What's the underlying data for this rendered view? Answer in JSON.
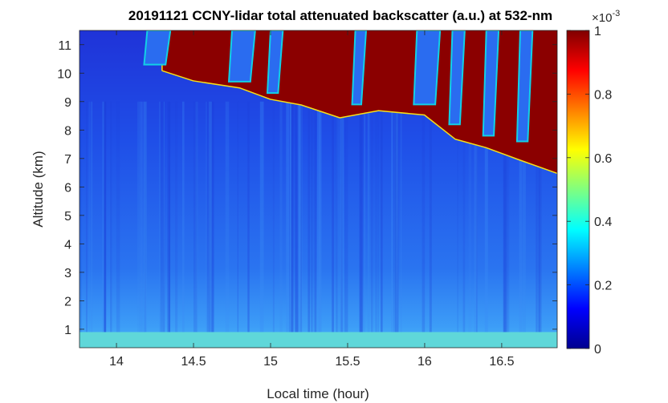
{
  "chart_data": {
    "type": "heatmap",
    "title": "20191121 CCNY-lidar total attenuated backscatter (a.u.) at 532-nm",
    "xlabel": "Local time (hour)",
    "ylabel": "Altitude (km)",
    "xlim": [
      13.76,
      16.86
    ],
    "ylim": [
      0.35,
      11.5
    ],
    "xticks": [
      14,
      14.5,
      15,
      15.5,
      16,
      16.5
    ],
    "xtick_labels": [
      "14",
      "14.5",
      "15",
      "15.5",
      "16",
      "16.5"
    ],
    "yticks": [
      1,
      2,
      3,
      4,
      5,
      6,
      7,
      8,
      9,
      10,
      11
    ],
    "ytick_labels": [
      "1",
      "2",
      "3",
      "4",
      "5",
      "6",
      "7",
      "8",
      "9",
      "10",
      "11"
    ],
    "colorbar": {
      "colormap": "jet",
      "clim": [
        0,
        1
      ],
      "ticks": [
        0,
        0.2,
        0.4,
        0.6,
        0.8,
        1
      ],
      "tick_labels": [
        "0",
        "0.2",
        "0.4",
        "0.6",
        "0.8",
        "1"
      ],
      "multiplier_base": "×10",
      "multiplier_exp": "-3"
    },
    "cloud_base_km": {
      "time": [
        14.3,
        14.5,
        14.8,
        15.0,
        15.2,
        15.45,
        15.7,
        16.0,
        16.2,
        16.4,
        16.6,
        16.86
      ],
      "altitude": [
        10.1,
        9.75,
        9.5,
        9.1,
        8.9,
        8.45,
        8.7,
        8.55,
        7.7,
        7.4,
        7.0,
        6.5
      ]
    },
    "cloud_top_km": 11.5,
    "boundary_layer_top_km": 0.9,
    "notes_visible": []
  }
}
